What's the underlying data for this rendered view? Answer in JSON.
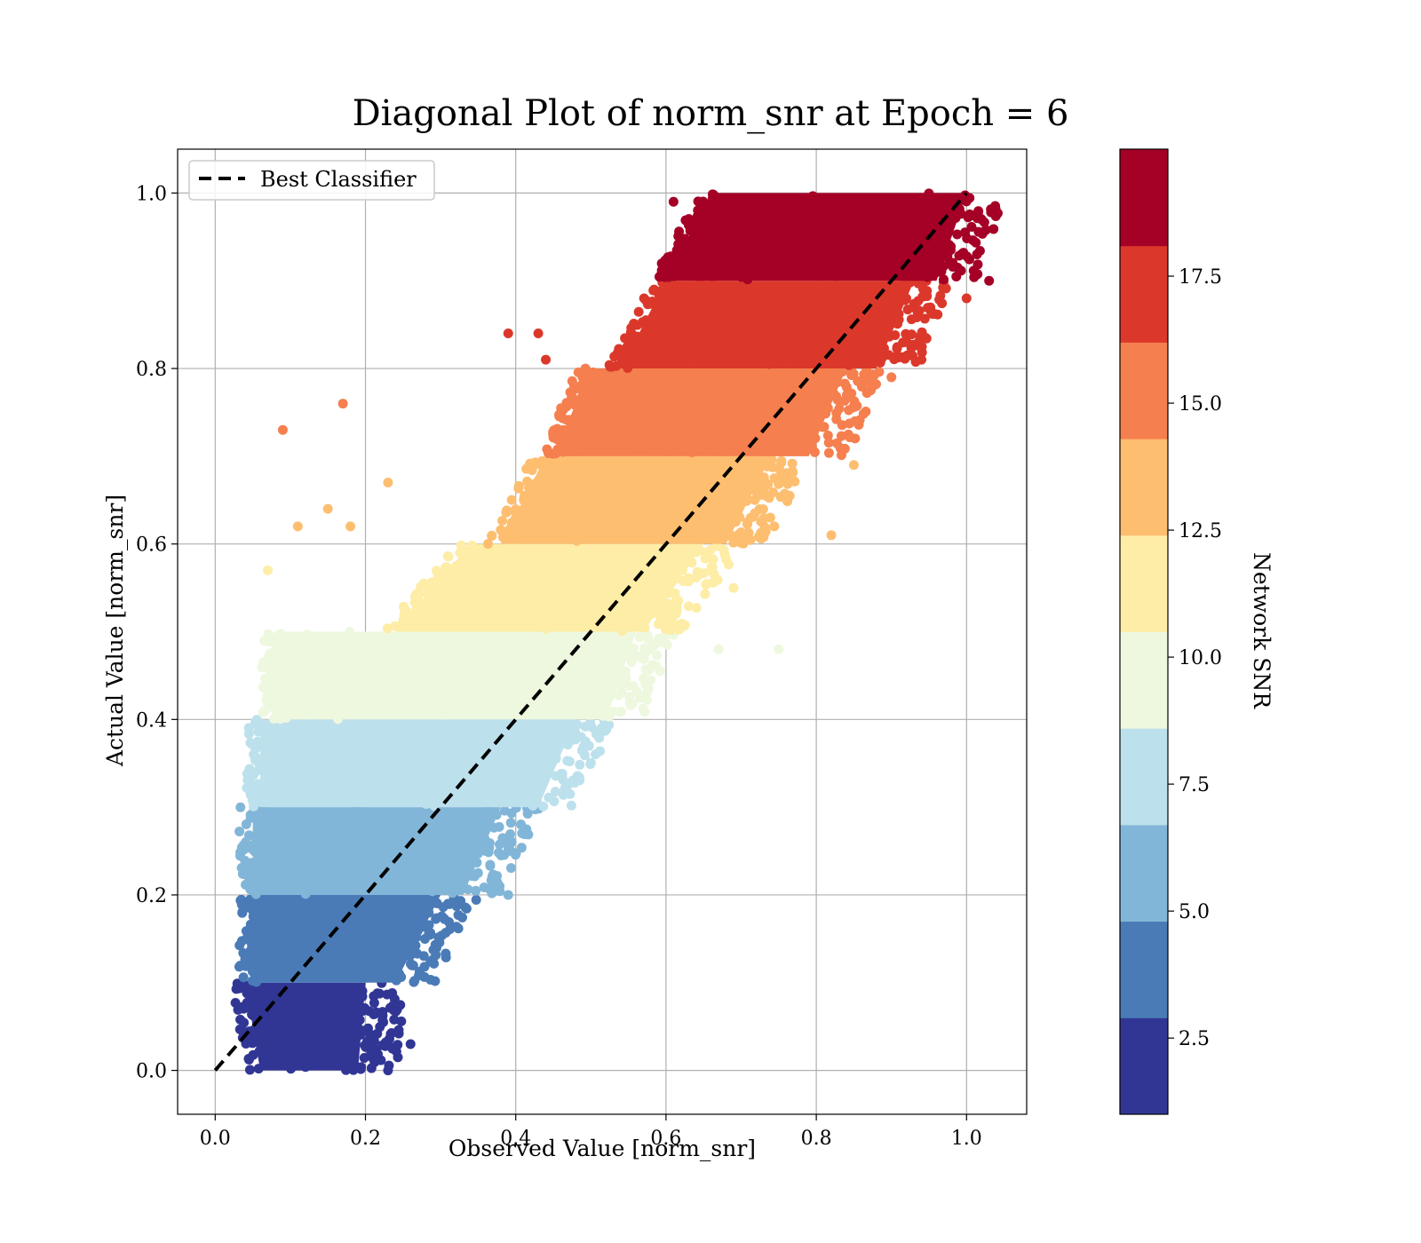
{
  "chart_data": {
    "type": "scatter",
    "title": "Diagonal Plot of norm_snr at Epoch = 6",
    "xlabel": "Observed Value [norm_snr]",
    "ylabel": "Actual Value [norm_snr]",
    "xlim": [
      -0.05,
      1.08
    ],
    "ylim": [
      -0.05,
      1.05
    ],
    "x_ticks": [
      "0.0",
      "0.2",
      "0.4",
      "0.6",
      "0.8",
      "1.0"
    ],
    "y_ticks": [
      "0.0",
      "0.2",
      "0.4",
      "0.6",
      "0.8",
      "1.0"
    ],
    "grid": true,
    "legend": {
      "position": "upper-left",
      "entries": [
        "Best Classifier"
      ]
    },
    "reference_line": {
      "name": "Best Classifier",
      "x": [
        0.0,
        1.0
      ],
      "y": [
        0.0,
        1.0
      ],
      "style": "dashed",
      "color": "#000000"
    },
    "colorbar": {
      "label": "Network SNR",
      "range": [
        1.0,
        20.0
      ],
      "ticks": [
        "2.5",
        "5.0",
        "7.5",
        "10.0",
        "12.5",
        "15.0",
        "17.5"
      ],
      "bins": [
        {
          "from": 1.0,
          "to": 2.9,
          "color": "#313695"
        },
        {
          "from": 2.9,
          "to": 4.8,
          "color": "#4a7bb7"
        },
        {
          "from": 4.8,
          "to": 6.7,
          "color": "#82b6d8"
        },
        {
          "from": 6.7,
          "to": 8.6,
          "color": "#bde1ec"
        },
        {
          "from": 8.6,
          "to": 10.5,
          "color": "#eef8df"
        },
        {
          "from": 10.5,
          "to": 12.4,
          "color": "#fdeda6"
        },
        {
          "from": 12.4,
          "to": 14.3,
          "color": "#fdbe70"
        },
        {
          "from": 14.3,
          "to": 16.2,
          "color": "#f57f4e"
        },
        {
          "from": 16.2,
          "to": 18.1,
          "color": "#db382b"
        },
        {
          "from": 18.1,
          "to": 20.0,
          "color": "#a50026"
        }
      ]
    },
    "bands": [
      {
        "y_range": [
          0.0,
          0.1
        ],
        "x_range_at_bottom": [
          0.06,
          0.19
        ],
        "x_range_at_top": [
          0.04,
          0.2
        ],
        "color": "#313695"
      },
      {
        "y_range": [
          0.1,
          0.2
        ],
        "x_range_at_bottom": [
          0.05,
          0.24
        ],
        "x_range_at_top": [
          0.05,
          0.3
        ],
        "color": "#4a7bb7"
      },
      {
        "y_range": [
          0.2,
          0.3
        ],
        "x_range_at_bottom": [
          0.05,
          0.33
        ],
        "x_range_at_top": [
          0.05,
          0.38
        ],
        "color": "#82b6d8"
      },
      {
        "y_range": [
          0.3,
          0.4
        ],
        "x_range_at_bottom": [
          0.06,
          0.43
        ],
        "x_range_at_top": [
          0.06,
          0.48
        ],
        "color": "#bde1ec"
      },
      {
        "y_range": [
          0.4,
          0.5
        ],
        "x_range_at_bottom": [
          0.08,
          0.52
        ],
        "x_range_at_top": [
          0.08,
          0.56
        ],
        "color": "#eef8df"
      },
      {
        "y_range": [
          0.5,
          0.6
        ],
        "x_range_at_bottom": [
          0.24,
          0.57
        ],
        "x_range_at_top": [
          0.34,
          0.65
        ],
        "color": "#fdeda6"
      },
      {
        "y_range": [
          0.6,
          0.7
        ],
        "x_range_at_bottom": [
          0.38,
          0.68
        ],
        "x_range_at_top": [
          0.44,
          0.74
        ],
        "color": "#fdbe70"
      },
      {
        "y_range": [
          0.7,
          0.8
        ],
        "x_range_at_bottom": [
          0.45,
          0.79
        ],
        "x_range_at_top": [
          0.5,
          0.84
        ],
        "color": "#f57f4e"
      },
      {
        "y_range": [
          0.8,
          0.9
        ],
        "x_range_at_bottom": [
          0.54,
          0.88
        ],
        "x_range_at_top": [
          0.6,
          0.93
        ],
        "color": "#db382b"
      },
      {
        "y_range": [
          0.9,
          1.0
        ],
        "x_range_at_bottom": [
          0.6,
          0.96
        ],
        "x_range_at_top": [
          0.66,
          1.0
        ],
        "color": "#a50026"
      }
    ],
    "outliers": [
      {
        "x": 0.09,
        "y": 0.73,
        "color": "#f57f4e"
      },
      {
        "x": 0.17,
        "y": 0.76,
        "color": "#f57f4e"
      },
      {
        "x": 0.39,
        "y": 0.84,
        "color": "#db382b"
      },
      {
        "x": 0.43,
        "y": 0.84,
        "color": "#db382b"
      },
      {
        "x": 0.44,
        "y": 0.81,
        "color": "#db382b"
      },
      {
        "x": 0.11,
        "y": 0.62,
        "color": "#fdbe70"
      },
      {
        "x": 0.15,
        "y": 0.64,
        "color": "#fdbe70"
      },
      {
        "x": 0.18,
        "y": 0.62,
        "color": "#fdbe70"
      },
      {
        "x": 0.23,
        "y": 0.67,
        "color": "#fdbe70"
      },
      {
        "x": 0.07,
        "y": 0.57,
        "color": "#fdeda6"
      },
      {
        "x": 0.75,
        "y": 0.48,
        "color": "#eef8df"
      },
      {
        "x": 0.67,
        "y": 0.48,
        "color": "#eef8df"
      },
      {
        "x": 0.39,
        "y": 0.2,
        "color": "#82b6d8"
      },
      {
        "x": 0.23,
        "y": 0.0,
        "color": "#313695"
      },
      {
        "x": 0.26,
        "y": 0.03,
        "color": "#313695"
      },
      {
        "x": 1.03,
        "y": 0.9,
        "color": "#a50026"
      },
      {
        "x": 1.02,
        "y": 0.97,
        "color": "#a50026"
      },
      {
        "x": 0.61,
        "y": 0.99,
        "color": "#a50026"
      },
      {
        "x": 0.85,
        "y": 0.69,
        "color": "#fdbe70"
      },
      {
        "x": 0.82,
        "y": 0.61,
        "color": "#fdbe70"
      },
      {
        "x": 0.9,
        "y": 0.79,
        "color": "#f57f4e"
      },
      {
        "x": 0.94,
        "y": 0.81,
        "color": "#db382b"
      },
      {
        "x": 1.0,
        "y": 0.88,
        "color": "#db382b"
      },
      {
        "x": 0.58,
        "y": 0.52,
        "color": "#fdeda6"
      },
      {
        "x": 0.69,
        "y": 0.55,
        "color": "#fdeda6"
      },
      {
        "x": 0.36,
        "y": 0.25,
        "color": "#82b6d8"
      }
    ]
  }
}
